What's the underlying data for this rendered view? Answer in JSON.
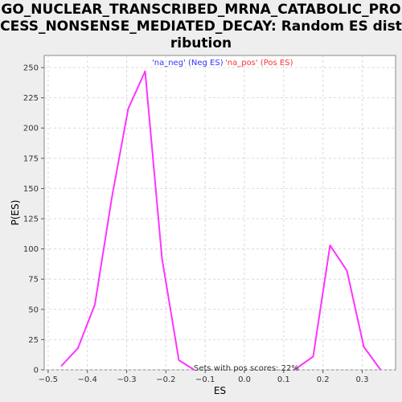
{
  "chart_data": {
    "type": "line",
    "title": "GO_NUCLEAR_TRANSCRIBED_MRNA_CATABOLIC_PROCESS_NONSENSE_MEDIATED_DECAY: Random ES distribution",
    "xlabel": "ES",
    "ylabel": "P(ES)",
    "xlim": [
      -0.51,
      0.385
    ],
    "ylim": [
      0,
      260
    ],
    "x_ticks": [
      -0.5,
      -0.4,
      -0.3,
      -0.2,
      -0.1,
      0.0,
      0.1,
      0.2,
      0.3
    ],
    "x_tick_labels": [
      "−0.5",
      "−0.4",
      "−0.3",
      "−0.2",
      "−0.1",
      "0.0",
      "0.1",
      "0.2",
      "0.3"
    ],
    "y_ticks": [
      0,
      25,
      50,
      75,
      100,
      125,
      150,
      175,
      200,
      225,
      250
    ],
    "y_tick_labels": [
      "0",
      "25",
      "50",
      "75",
      "100",
      "125",
      "150",
      "175",
      "200",
      "225",
      "250"
    ],
    "grid": true,
    "legend_position": "top",
    "legend": [
      {
        "label": "'na_neg' (Neg ES)",
        "color": "#3333ff"
      },
      {
        "label": "'na_pos' (Pos ES)",
        "color": "#ff3333"
      }
    ],
    "annotation": "Sets with pos scores: 22%",
    "series": [
      {
        "color": "#ff33ff",
        "segments": [
          {
            "x": [
              -0.467,
              -0.424,
              -0.381,
              -0.338,
              -0.296,
              -0.253,
              -0.21,
              -0.167,
              -0.128
            ],
            "y": [
              3,
              18,
              54,
              142,
              216,
              247,
              92,
              8,
              0
            ]
          },
          {
            "x": [
              0.127,
              0.175,
              0.218,
              0.261,
              0.304,
              0.347
            ],
            "y": [
              0,
              11,
              103,
              82,
              19,
              0
            ]
          }
        ]
      }
    ]
  }
}
